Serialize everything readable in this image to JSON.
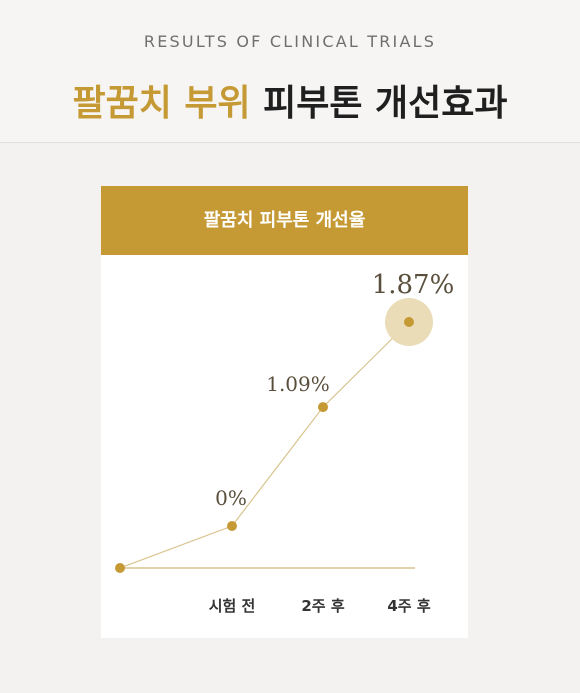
{
  "header": {
    "subtitle": "RESULTS OF CLINICAL TRIALS",
    "title_accent": "팔꿈치 부위",
    "title_rest": " 피부톤 개선효과"
  },
  "colors": {
    "accent": "#c59a35",
    "line": "#d8c48d",
    "text": "#1f1f1f"
  },
  "chart_data": {
    "type": "line",
    "title": "팔꿈치 피부톤 개선율",
    "categories": [
      "",
      "시험 전",
      "2주 후",
      "4주 후"
    ],
    "values": [
      null,
      0,
      1.09,
      1.87
    ],
    "labels": [
      "",
      "0%",
      "1.09%",
      "1.87%"
    ],
    "highlight_index": 3
  }
}
